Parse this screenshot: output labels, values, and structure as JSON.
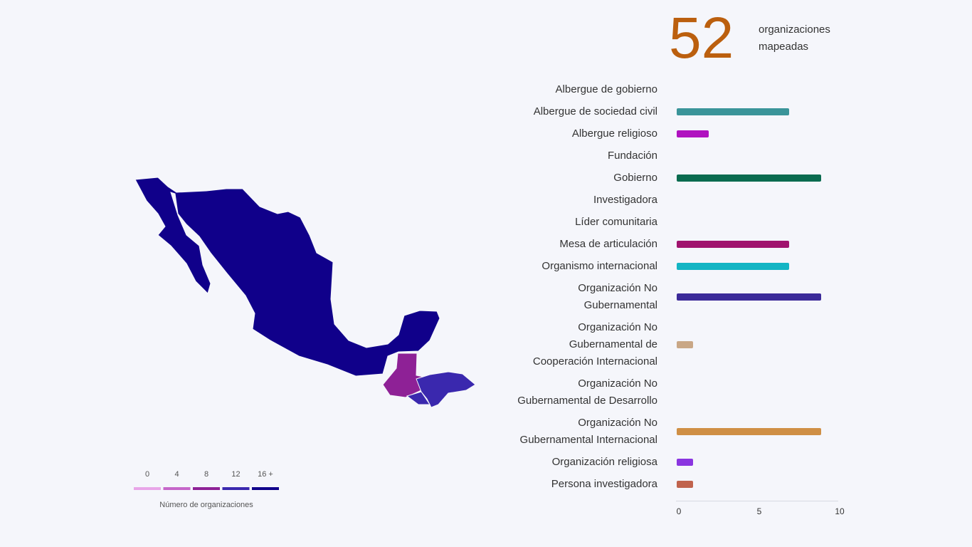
{
  "counter": {
    "value": 52,
    "label": "organizaciones mapeadas",
    "color": "#bb5f0e"
  },
  "map": {
    "values": [
      16,
      8,
      12,
      12
    ],
    "legend": {
      "title": "Número de organizaciones",
      "ticks": [
        0,
        4,
        8,
        12,
        {
          "value": 16,
          "label": "16 +"
        }
      ],
      "colors": [
        "#e8a5e8",
        "#c566c9",
        "#8e2196",
        "#3a28ae",
        "#10008a"
      ]
    }
  },
  "chart_data": {
    "type": "bar",
    "orientation": "horizontal",
    "categories": [
      "Albergue de gobierno",
      "Albergue de sociedad civil",
      "Albergue religioso",
      "Fundación",
      "Gobierno",
      "Investigadora",
      "Líder comunitaria",
      "Mesa de articulación",
      "Organismo internacional",
      "Organización No Gubernamental",
      "Organización No Gubernamental de Cooperación Internacional",
      "Organización No Gubernamental de Desarrollo",
      "Organización No Gubernamental Internacional",
      "Organización religiosa",
      "Persona investigadora"
    ],
    "values": [
      0,
      7,
      2,
      0,
      9,
      0,
      0,
      7,
      7,
      9,
      1,
      0,
      9,
      1,
      1
    ],
    "colors": [
      null,
      "#3a9499",
      "#b012c0",
      null,
      "#0a6b4f",
      null,
      null,
      "#a0136e",
      "#14b5c4",
      "#3b2a99",
      "#c9a786",
      null,
      "#cf8f45",
      "#8a35e0",
      "#c0634d"
    ],
    "xlim": [
      0,
      10
    ],
    "xticks": [
      0,
      5,
      10
    ]
  }
}
